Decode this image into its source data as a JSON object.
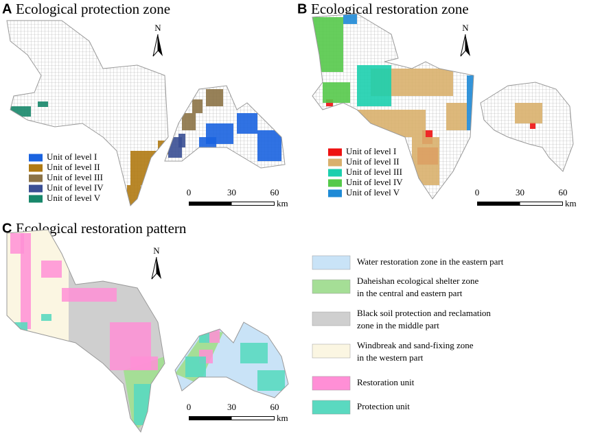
{
  "panels": [
    {
      "label": "A",
      "title": "Ecological protection zone",
      "north": "N",
      "legend": [
        {
          "label": "Unit of level I",
          "color": "#1a63e0"
        },
        {
          "label": "Unit of level II",
          "color": "#b07a12"
        },
        {
          "label": "Unit of level III",
          "color": "#8c7346"
        },
        {
          "label": "Unit of level IV",
          "color": "#3a4f94"
        },
        {
          "label": "Unit of level V",
          "color": "#17876a"
        }
      ],
      "scale": {
        "ticks": [
          0,
          30,
          60
        ],
        "unit": "km"
      }
    },
    {
      "label": "B",
      "title": "Ecological restoration zone",
      "north": "N",
      "legend": [
        {
          "label": "Unit of level I",
          "color": "#ee1111"
        },
        {
          "label": "Unit of level II",
          "color": "#d9b06d"
        },
        {
          "label": "Unit of level III",
          "color": "#1ccfae"
        },
        {
          "label": "Unit of level IV",
          "color": "#55c94a"
        },
        {
          "label": "Unit of level V",
          "color": "#1e8ad6"
        }
      ],
      "scale": {
        "ticks": [
          0,
          30,
          60
        ],
        "unit": "km"
      }
    },
    {
      "label": "C",
      "title": "Ecological restoration pattern",
      "north": "N",
      "legend": [
        {
          "lines": [
            "Water restoration zone in the eastern part"
          ],
          "color": "#c9e3f7"
        },
        {
          "lines": [
            "Daheishan ecological shelter zone",
            "in the central and eastern part"
          ],
          "color": "#a5de96"
        },
        {
          "lines": [
            "Black soil protection and reclamation",
            "zone in the middle part"
          ],
          "color": "#cfcfcf"
        },
        {
          "lines": [
            "Windbreak and sand-fixing zone",
            "in the western part"
          ],
          "color": "#fbf6e2"
        },
        {
          "lines": [
            "Restoration unit"
          ],
          "color": "#ff8fd6"
        },
        {
          "lines": [
            "Protection unit"
          ],
          "color": "#5ad9c0"
        }
      ],
      "scale": {
        "ticks": [
          0,
          30,
          60
        ],
        "unit": "km"
      }
    }
  ]
}
